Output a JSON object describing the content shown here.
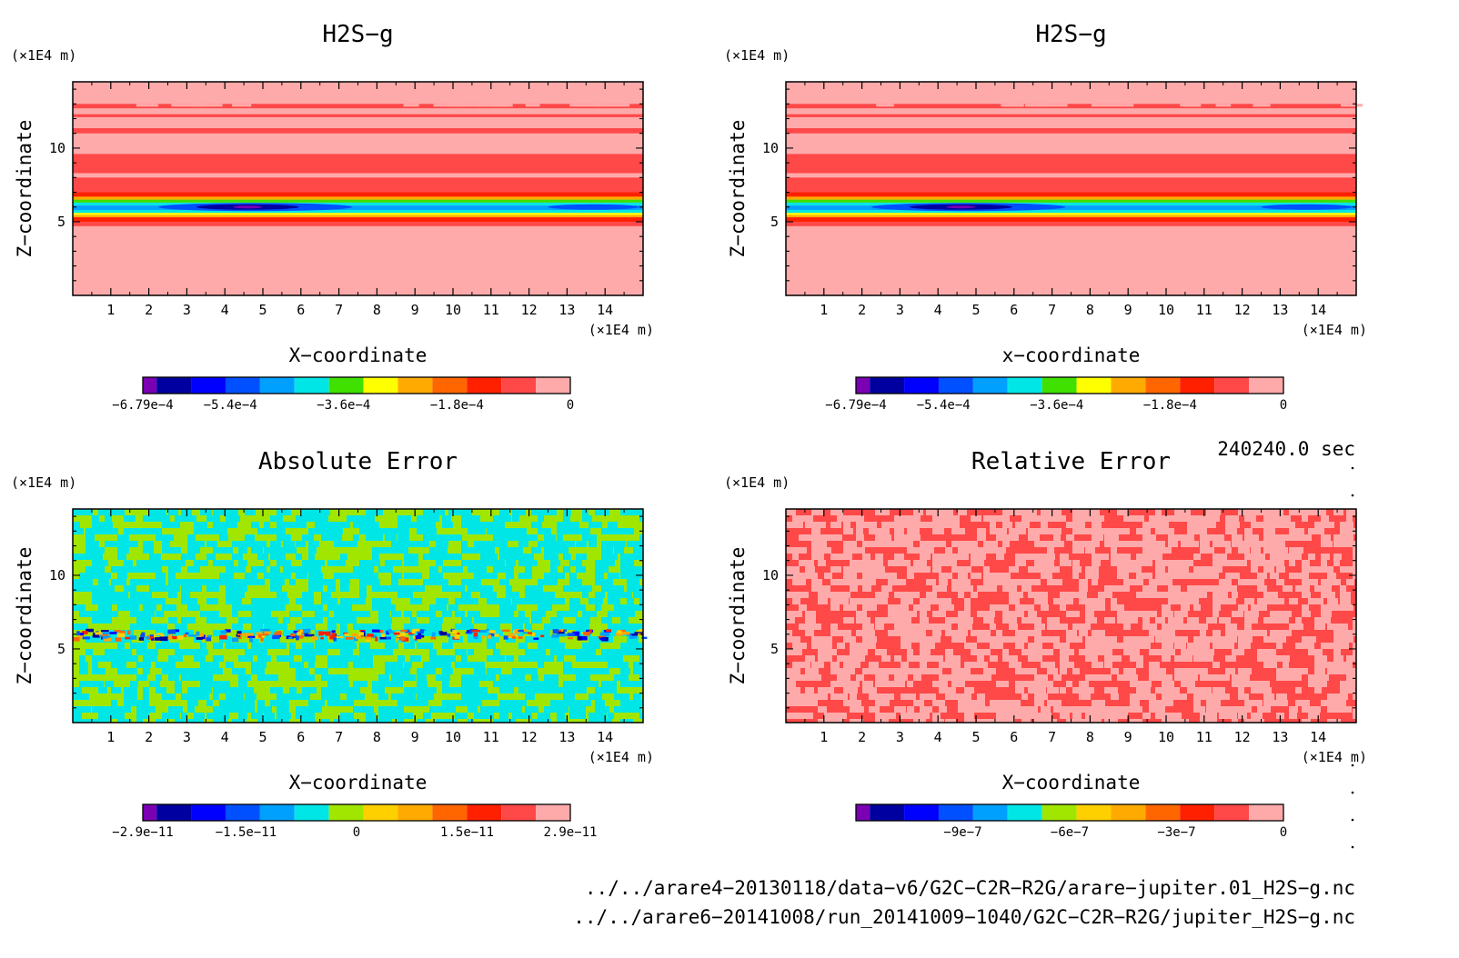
{
  "chart_data": [
    {
      "type": "heatmap",
      "title": "H2S−g",
      "xlabel": "X−coordinate",
      "ylabel": "Z−coordinate",
      "x_unit": "(×1E4 m)",
      "z_unit": "(×1E4 m)",
      "xlim": [
        0,
        15
      ],
      "zlim": [
        0,
        14.5
      ],
      "x_ticks": [
        "1",
        "2",
        "3",
        "4",
        "5",
        "6",
        "7",
        "8",
        "9",
        "10",
        "11",
        "12",
        "13",
        "14"
      ],
      "z_ticks": [
        "5",
        "10"
      ],
      "field": "stratified",
      "colorbar": {
        "colors": [
          "#7b00b4",
          "#0000a0",
          "#0000ff",
          "#0050ff",
          "#00a0ff",
          "#00e6e6",
          "#40e000",
          "#ffff00",
          "#ffaa00",
          "#ff6600",
          "#ff2000",
          "#ff4848",
          "#ffaaaa"
        ],
        "tick_labels": [
          "−6.79e−4",
          "−5.4e−4",
          "−3.6e−4",
          "−1.8e−4",
          "0"
        ],
        "ticks": [
          -0.000679,
          -0.00054,
          -0.00036,
          -0.00018,
          0
        ],
        "range": [
          -0.000679,
          0
        ]
      }
    },
    {
      "type": "heatmap",
      "title": "H2S−g",
      "xlabel": "x−coordinate",
      "ylabel": "Z−coordinate",
      "x_unit": "(×1E4 m)",
      "z_unit": "(×1E4 m)",
      "xlim": [
        0,
        15
      ],
      "zlim": [
        0,
        14.5
      ],
      "x_ticks": [
        "1",
        "2",
        "3",
        "4",
        "5",
        "6",
        "7",
        "8",
        "9",
        "10",
        "11",
        "12",
        "13",
        "14"
      ],
      "z_ticks": [
        "5",
        "10"
      ],
      "field": "stratified",
      "colorbar": {
        "colors": [
          "#7b00b4",
          "#0000a0",
          "#0000ff",
          "#0050ff",
          "#00a0ff",
          "#00e6e6",
          "#40e000",
          "#ffff00",
          "#ffaa00",
          "#ff6600",
          "#ff2000",
          "#ff4848",
          "#ffaaaa"
        ],
        "tick_labels": [
          "−6.79e−4",
          "−5.4e−4",
          "−3.6e−4",
          "−1.8e−4",
          "0"
        ],
        "ticks": [
          -0.000679,
          -0.00054,
          -0.00036,
          -0.00018,
          0
        ],
        "range": [
          -0.000679,
          0
        ]
      }
    },
    {
      "type": "heatmap",
      "title": "Absolute Error",
      "xlabel": "X−coordinate",
      "ylabel": "Z−coordinate",
      "x_unit": "(×1E4 m)",
      "z_unit": "(×1E4 m)",
      "xlim": [
        0,
        15
      ],
      "zlim": [
        0,
        14.5
      ],
      "x_ticks": [
        "1",
        "2",
        "3",
        "4",
        "5",
        "6",
        "7",
        "8",
        "9",
        "10",
        "11",
        "12",
        "13",
        "14"
      ],
      "z_ticks": [
        "5",
        "10"
      ],
      "field": "abs_noise",
      "colorbar": {
        "colors": [
          "#7b00b4",
          "#0000a0",
          "#0000ff",
          "#0050ff",
          "#00a0ff",
          "#00e6e6",
          "#a0e600",
          "#ffd000",
          "#ffaa00",
          "#ff6600",
          "#ff2000",
          "#ff4848",
          "#ffaaaa"
        ],
        "tick_labels": [
          "−2.9e−11",
          "−1.5e−11",
          "0",
          "1.5e−11",
          "2.9e−11"
        ],
        "ticks": [
          -2.9e-11,
          -1.5e-11,
          0,
          1.5e-11,
          2.9e-11
        ],
        "range": [
          -2.9e-11,
          2.9e-11
        ]
      }
    },
    {
      "type": "heatmap",
      "title": "Relative Error",
      "xlabel": "X−coordinate",
      "ylabel": "Z−coordinate",
      "x_unit": "(×1E4 m)",
      "z_unit": "(×1E4 m)",
      "xlim": [
        0,
        15
      ],
      "zlim": [
        0,
        14.5
      ],
      "x_ticks": [
        "1",
        "2",
        "3",
        "4",
        "5",
        "6",
        "7",
        "8",
        "9",
        "10",
        "11",
        "12",
        "13",
        "14"
      ],
      "z_ticks": [
        "5",
        "10"
      ],
      "field": "rel_noise",
      "colorbar": {
        "colors": [
          "#7b00b4",
          "#0000a0",
          "#0000ff",
          "#0050ff",
          "#00a0ff",
          "#00e6e6",
          "#a0e600",
          "#ffd000",
          "#ffaa00",
          "#ff6600",
          "#ff2000",
          "#ff4848",
          "#ffaaaa"
        ],
        "tick_labels": [
          "−9e−7",
          "−6e−7",
          "−3e−7",
          "0"
        ],
        "ticks": [
          -9e-07,
          -6e-07,
          -3e-07,
          0
        ],
        "range": [
          -1.2e-06,
          0
        ]
      }
    }
  ],
  "info": {
    "time": "240240.0 sec",
    "file1": "../../arare4−20130118/data−v6/G2C−C2R−R2G/arare−jupiter.01_H2S−g.nc",
    "file2": "../../arare6−20141008/run_20141009−1040/G2C−C2R−R2G/jupiter_H2S−g.nc"
  }
}
